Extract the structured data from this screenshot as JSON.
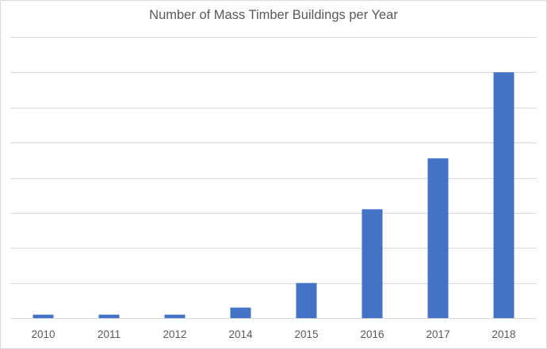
{
  "chart_data": {
    "type": "bar",
    "title": "Number of Mass Timber Buildings per Year",
    "xlabel": "",
    "ylabel": "",
    "categories": [
      "2010",
      "2011",
      "2012",
      "2014",
      "2015",
      "2016",
      "2017",
      "2018"
    ],
    "values": [
      1,
      1,
      1,
      3,
      10,
      31,
      45.5,
      70
    ],
    "ylim": [
      0,
      80
    ],
    "y_axis_labels_shown": false,
    "grid": true,
    "legend": "none",
    "bar_color": "#4472c4",
    "grid_color": "#d9d9d9",
    "text_color": "#595959"
  }
}
